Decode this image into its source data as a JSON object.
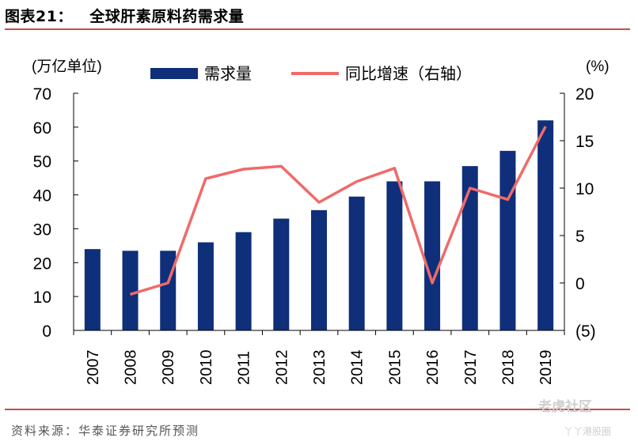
{
  "header": {
    "title": "图表21：   全球肝素原料药需求量"
  },
  "footer": {
    "source": "资料来源：华泰证券研究所预测"
  },
  "watermark": {
    "main": "老虎社区",
    "sub": "丫丫港股圈"
  },
  "colors": {
    "bar": "#0f2f7a",
    "line": "#f06a6a",
    "rule": "#c0504d"
  },
  "chart_data": {
    "type": "bar",
    "categories": [
      "2007",
      "2008",
      "2009",
      "2010",
      "2011",
      "2012",
      "2013",
      "2014",
      "2015",
      "2016",
      "2017",
      "2018",
      "2019"
    ],
    "series": [
      {
        "name": "需求量",
        "type": "bar",
        "axis": "left",
        "values": [
          24,
          23.5,
          23.5,
          26,
          29,
          33,
          35.5,
          39.5,
          44,
          44,
          48.5,
          53,
          62
        ]
      },
      {
        "name": "同比增速（右轴）",
        "type": "line",
        "axis": "right",
        "values": [
          null,
          -1.2,
          0,
          11,
          12,
          12.3,
          8.5,
          10.7,
          12.1,
          0,
          10,
          8.8,
          16.5
        ]
      }
    ],
    "ylabel_left": "(万亿单位)",
    "ylabel_right": "(%)",
    "ylim_left": [
      0,
      70
    ],
    "ylim_right": [
      -5,
      20
    ],
    "yticks_left": [
      "0",
      "10",
      "20",
      "30",
      "40",
      "50",
      "60",
      "70"
    ],
    "yticks_right": [
      "(5)",
      "0",
      "5",
      "10",
      "15",
      "20"
    ],
    "legend_position": "top-center",
    "grid": false
  }
}
